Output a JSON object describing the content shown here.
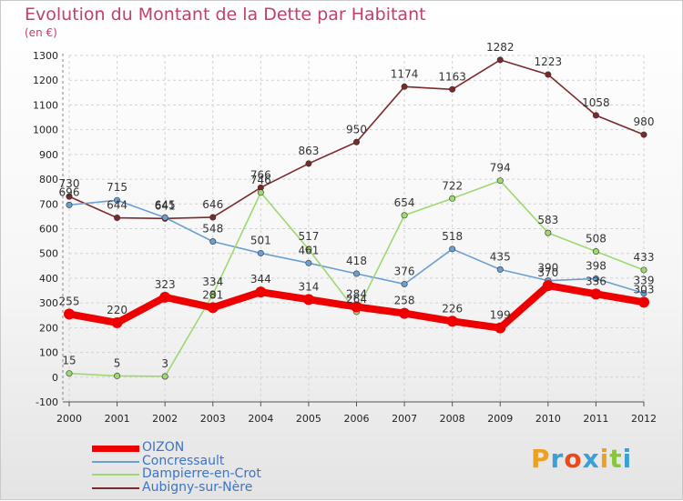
{
  "header": {
    "title": "Evolution du Montant de la Dette par Habitant",
    "subtitle": "(en €)"
  },
  "logo": {
    "text": "Proxiti",
    "colors": [
      "#f0a020",
      "#3aa0d8",
      "#e84a1a",
      "#3aa0d8",
      "#f0a020",
      "#8ac63c",
      "#3aa0d8"
    ]
  },
  "chart_data": {
    "type": "line",
    "title": "Evolution du Montant de la Dette par Habitant",
    "subtitle": "(en €)",
    "x": [
      "2000",
      "2001",
      "2002",
      "2003",
      "2004",
      "2005",
      "2006",
      "2007",
      "2008",
      "2009",
      "2010",
      "2011",
      "2012"
    ],
    "ylim": [
      -100,
      1300
    ],
    "yticks": [
      -100,
      0,
      100,
      200,
      300,
      400,
      500,
      600,
      700,
      800,
      900,
      1000,
      1100,
      1200,
      1300
    ],
    "grid": true,
    "legend_position": "bottom-left",
    "series": [
      {
        "name": "OIZON",
        "color": "#ee0000",
        "values": [
          255,
          220,
          323,
          281,
          344,
          314,
          284,
          258,
          226,
          199,
          370,
          336,
          303
        ]
      },
      {
        "name": "Concressault",
        "color": "#6a9fd1",
        "values": [
          696,
          715,
          645,
          548,
          501,
          461,
          418,
          376,
          518,
          435,
          390,
          398,
          339
        ]
      },
      {
        "name": "Dampierre-en-Crot",
        "color": "#9ed870",
        "values": [
          15,
          5,
          3,
          334,
          746,
          517,
          264,
          654,
          722,
          794,
          583,
          508,
          433
        ]
      },
      {
        "name": "Aubigny-sur-Nère",
        "color": "#7a2a2a",
        "values": [
          730,
          644,
          641,
          646,
          766,
          863,
          950,
          1174,
          1163,
          1282,
          1223,
          1058,
          980
        ]
      }
    ],
    "point_labels": [
      [
        "255",
        "220",
        "323",
        "281",
        "344",
        "314",
        "284",
        "258",
        "226",
        "199",
        "370",
        "336",
        "303"
      ],
      [
        "696",
        "715",
        "645",
        "548",
        "501",
        "461",
        "418",
        "376",
        "518",
        "435",
        "390",
        "398",
        "339"
      ],
      [
        "15",
        "5",
        "3",
        "334",
        "746",
        "517",
        "264",
        "654",
        "722",
        "794",
        "583",
        "508",
        "433"
      ],
      [
        "730",
        "644",
        "641",
        "646",
        "766",
        "863",
        "950",
        "1174",
        "1163",
        "1282",
        "1223",
        "1058",
        "980"
      ]
    ]
  }
}
